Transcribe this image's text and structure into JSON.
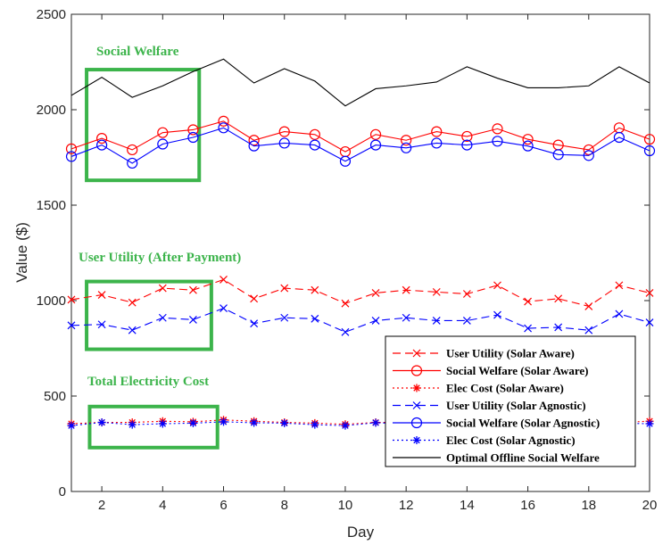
{
  "chart_data": {
    "type": "line",
    "title": "",
    "xlabel": "Day",
    "ylabel": "Value ($)",
    "xlim": [
      1,
      20
    ],
    "ylim": [
      0,
      2500
    ],
    "xticks": [
      2,
      4,
      6,
      8,
      10,
      12,
      14,
      16,
      18,
      20
    ],
    "yticks": [
      0,
      500,
      1000,
      1500,
      2000,
      2500
    ],
    "grid": false,
    "legend_position": "bottom-right",
    "x": [
      1,
      2,
      3,
      4,
      5,
      6,
      7,
      8,
      9,
      10,
      11,
      12,
      13,
      14,
      15,
      16,
      17,
      18,
      19,
      20
    ],
    "series": [
      {
        "name": "User Utility (Solar Aware)",
        "color": "#ff0000",
        "line": "dashed",
        "marker": "x",
        "values": [
          1005,
          1030,
          990,
          1065,
          1055,
          1110,
          1010,
          1065,
          1055,
          985,
          1040,
          1055,
          1045,
          1035,
          1080,
          995,
          1010,
          970,
          1080,
          1040
        ]
      },
      {
        "name": "Social Welfare (Solar Aware)",
        "color": "#ff0000",
        "line": "solid",
        "marker": "o",
        "values": [
          1795,
          1850,
          1790,
          1880,
          1895,
          1940,
          1840,
          1885,
          1870,
          1780,
          1870,
          1840,
          1885,
          1860,
          1900,
          1845,
          1815,
          1790,
          1905,
          1845
        ]
      },
      {
        "name": "Elec Cost (Solar Aware)",
        "color": "#ff0000",
        "line": "dotted",
        "marker": "*",
        "values": [
          355,
          362,
          362,
          368,
          365,
          375,
          368,
          362,
          358,
          352,
          362,
          362,
          365,
          362,
          362,
          362,
          362,
          362,
          362,
          368
        ]
      },
      {
        "name": "User Utility (Solar Agnostic)",
        "color": "#0000ff",
        "line": "dashed",
        "marker": "x",
        "values": [
          870,
          875,
          845,
          910,
          900,
          960,
          880,
          910,
          905,
          835,
          895,
          910,
          895,
          895,
          925,
          855,
          860,
          845,
          930,
          885
        ]
      },
      {
        "name": "Social Welfare (Solar Agnostic)",
        "color": "#0000ff",
        "line": "solid",
        "marker": "o",
        "values": [
          1755,
          1815,
          1720,
          1820,
          1855,
          1905,
          1810,
          1825,
          1815,
          1730,
          1815,
          1800,
          1825,
          1815,
          1835,
          1810,
          1765,
          1760,
          1855,
          1785
        ]
      },
      {
        "name": "Elec Cost (Solar Agnostic)",
        "color": "#0000ff",
        "line": "dotted",
        "marker": "*",
        "values": [
          345,
          362,
          350,
          355,
          358,
          365,
          360,
          358,
          350,
          345,
          360,
          355,
          358,
          358,
          355,
          355,
          358,
          358,
          358,
          355
        ]
      },
      {
        "name": "Optimal Offline Social Welfare",
        "color": "#000000",
        "line": "solid",
        "marker": "none",
        "values": [
          2075,
          2170,
          2065,
          2125,
          2200,
          2265,
          2140,
          2215,
          2150,
          2020,
          2110,
          2125,
          2145,
          2225,
          2165,
          2115,
          2115,
          2125,
          2225,
          2140
        ]
      }
    ],
    "annotations": [
      {
        "text": "Social Welfare",
        "box_color": "#3cb44b",
        "box_x": [
          1.5,
          5.2
        ],
        "box_y": [
          1630,
          2210
        ]
      },
      {
        "text": "User Utility (After Payment)",
        "box_color": "#3cb44b",
        "box_x": [
          1.5,
          5.6
        ],
        "box_y": [
          745,
          1100
        ]
      },
      {
        "text": "Total Electricity Cost",
        "box_color": "#3cb44b",
        "box_x": [
          1.6,
          5.8
        ],
        "box_y": [
          230,
          445
        ]
      }
    ]
  }
}
